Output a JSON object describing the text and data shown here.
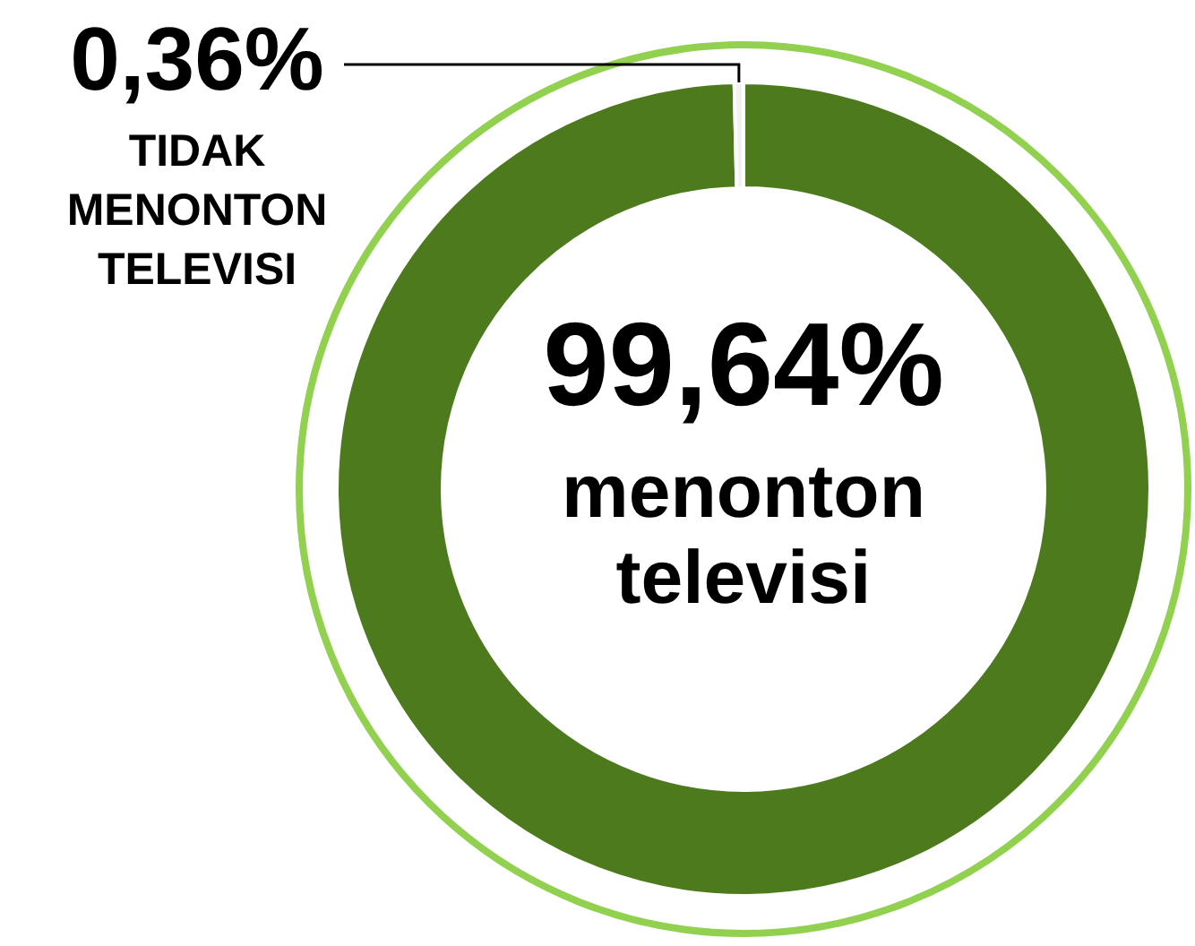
{
  "chart_data": {
    "type": "donut",
    "categories": [
      "menonton televisi",
      "TIDAK MENONTON TELEVISI"
    ],
    "values": [
      99.64,
      0.36
    ],
    "colors": [
      "#4e7a1e",
      "#f2f2f2"
    ],
    "value_labels": [
      "99,64%",
      "0,36%"
    ]
  }
}
